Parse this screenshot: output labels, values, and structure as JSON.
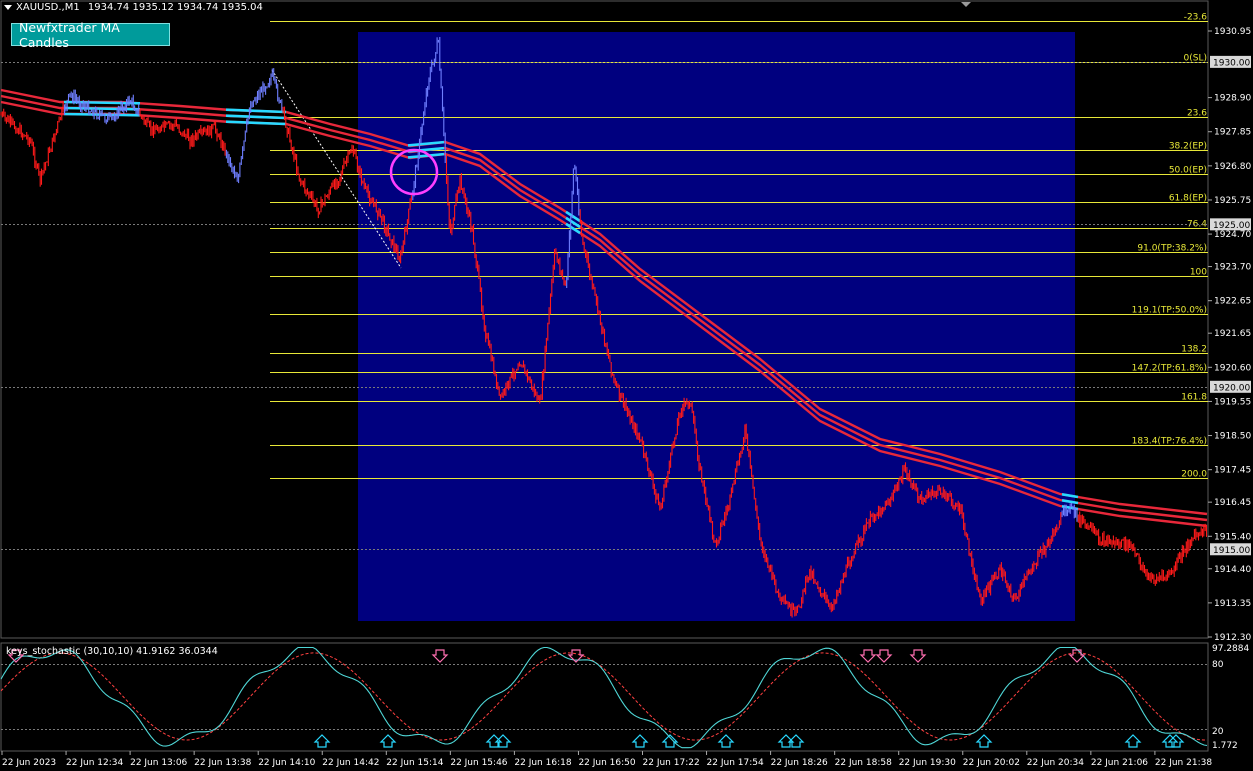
{
  "header": {
    "symbol": "XAUUSD.,M1",
    "ohlc": "1934.74 1935.12 1934.74 1935.04"
  },
  "ea_button": {
    "label": "Newfxtrader MA Candles"
  },
  "colors": {
    "background": "#000000",
    "highlight_box": "#00007f",
    "fib": "#e8e838",
    "bear_candle": "#ff1a1a",
    "bull_candle": "#6f7fff",
    "ma_band": "#e8283a",
    "ma_touch": "#29d9ff",
    "stoch_main": "#4fd6d6",
    "stoch_signal": "#ff4040",
    "circle": "#ff3fff",
    "arrow_up": "#29d9ff",
    "arrow_down": "#ff6fb0"
  },
  "price_axis": {
    "labels": [
      "1930.95",
      "1928.90",
      "1927.85",
      "1926.80",
      "1925.75",
      "1924.70",
      "1923.70",
      "1922.65",
      "1921.65",
      "1920.60",
      "1919.55",
      "1918.50",
      "1917.45",
      "1916.45",
      "1915.40",
      "1914.40",
      "1913.35",
      "1912.30"
    ],
    "tags": [
      {
        "price": 1930.0,
        "text": "1930.00"
      },
      {
        "price": 1925.0,
        "text": "1925.00"
      },
      {
        "price": 1920.0,
        "text": "1920.00"
      },
      {
        "price": 1915.0,
        "text": "1915.00"
      }
    ]
  },
  "fib_levels": [
    {
      "label": "-23.6",
      "price": 1931.25
    },
    {
      "label": "0(SL)",
      "price": 1930.0
    },
    {
      "label": "23.6",
      "price": 1928.3
    },
    {
      "label": "38.2(EP)",
      "price": 1927.3
    },
    {
      "label": "50.0(EP)",
      "price": 1926.55
    },
    {
      "label": "61.8(EP)",
      "price": 1925.7
    },
    {
      "label": "76.4",
      "price": 1924.9
    },
    {
      "label": "91.0(TP:38.2%)",
      "price": 1924.15
    },
    {
      "label": "100",
      "price": 1923.4
    },
    {
      "label": "119.1(TP:50.0%)",
      "price": 1922.25
    },
    {
      "label": "138.2",
      "price": 1921.05
    },
    {
      "label": "147.2(TP:61.8%)",
      "price": 1920.45
    },
    {
      "label": "161.8",
      "price": 1919.55
    },
    {
      "label": "183.4(TP:76.4%)",
      "price": 1918.2
    },
    {
      "label": "200.0",
      "price": 1917.2
    }
  ],
  "time_axis": [
    "22 Jun 2023",
    "22 Jun 12:34",
    "22 Jun 13:06",
    "22 Jun 13:38",
    "22 Jun 14:10",
    "22 Jun 14:42",
    "22 Jun 15:14",
    "22 Jun 15:46",
    "22 Jun 16:18",
    "22 Jun 16:50",
    "22 Jun 17:22",
    "22 Jun 17:54",
    "22 Jun 18:26",
    "22 Jun 18:58",
    "22 Jun 19:30",
    "22 Jun 20:02",
    "22 Jun 20:34",
    "22 Jun 21:06",
    "22 Jun 21:38"
  ],
  "indicator": {
    "title": "keys_stochastic (30,10,10) 41.9162 36.0344",
    "axis_labels": [
      "97.2884",
      "80",
      "20",
      "1.772"
    ]
  }
}
